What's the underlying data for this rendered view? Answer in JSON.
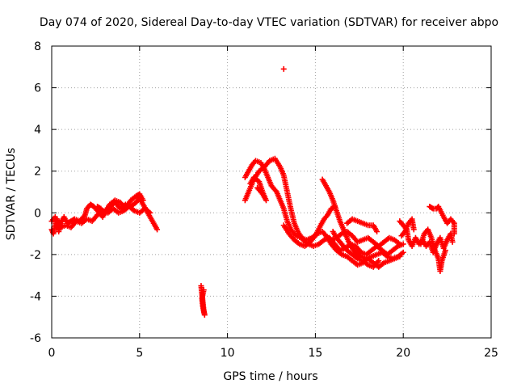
{
  "chart_data": {
    "type": "scatter",
    "title": "Day 074 of 2020, Sidereal Day-to-day VTEC variation (SDTVAR) for receiver abpo",
    "xlabel": "GPS time / hours",
    "ylabel": "SDTVAR / TECUs",
    "xlim": [
      0,
      25
    ],
    "ylim": [
      -6,
      8
    ],
    "xticks": [
      0,
      5,
      10,
      15,
      20,
      25
    ],
    "yticks": [
      -6,
      -4,
      -2,
      0,
      2,
      4,
      6,
      8
    ],
    "grid": true,
    "marker": "+",
    "color": "#ff0000",
    "series": [
      {
        "name": "SDTVAR",
        "tracks": [
          [
            [
              0.0,
              -0.8
            ],
            [
              0.1,
              -1.0
            ],
            [
              0.2,
              -0.6
            ],
            [
              0.3,
              -0.3
            ],
            [
              0.4,
              -0.9
            ],
            [
              0.5,
              -0.5
            ],
            [
              0.7,
              -0.2
            ],
            [
              0.9,
              -0.5
            ],
            [
              1.1,
              -0.4
            ],
            [
              1.3,
              -0.3
            ],
            [
              1.6,
              -0.4
            ],
            [
              1.9,
              -0.1
            ],
            [
              2.0,
              0.2
            ],
            [
              2.2,
              0.4
            ],
            [
              2.4,
              0.3
            ],
            [
              2.7,
              0.0
            ],
            [
              2.9,
              -0.2
            ],
            [
              3.1,
              0.1
            ],
            [
              3.3,
              0.3
            ],
            [
              3.6,
              0.5
            ],
            [
              3.9,
              0.2
            ],
            [
              4.2,
              0.4
            ],
            [
              4.5,
              0.3
            ],
            [
              4.8,
              0.5
            ],
            [
              5.0,
              0.7
            ],
            [
              5.2,
              0.4
            ],
            [
              5.4,
              0.1
            ],
            [
              5.6,
              -0.2
            ],
            [
              5.8,
              -0.5
            ],
            [
              6.0,
              -0.8
            ]
          ],
          [
            [
              0.0,
              -0.4
            ],
            [
              0.2,
              -0.2
            ],
            [
              0.5,
              -0.7
            ],
            [
              0.8,
              -0.6
            ],
            [
              1.1,
              -0.7
            ],
            [
              1.4,
              -0.4
            ],
            [
              1.7,
              -0.5
            ],
            [
              2.0,
              -0.3
            ],
            [
              2.3,
              -0.4
            ],
            [
              2.6,
              -0.1
            ],
            [
              2.9,
              0.1
            ],
            [
              3.2,
              0.0
            ],
            [
              3.5,
              0.2
            ],
            [
              3.8,
              0.0
            ],
            [
              4.1,
              0.1
            ],
            [
              4.4,
              0.3
            ],
            [
              4.7,
              0.1
            ],
            [
              5.0,
              0.0
            ],
            [
              5.3,
              0.2
            ],
            [
              5.6,
              0.0
            ]
          ],
          [
            [
              2.6,
              0.3
            ],
            [
              2.8,
              0.2
            ],
            [
              3.0,
              0.0
            ],
            [
              3.3,
              0.4
            ],
            [
              3.6,
              0.6
            ],
            [
              3.9,
              0.5
            ],
            [
              4.2,
              0.2
            ],
            [
              4.5,
              0.6
            ],
            [
              4.8,
              0.8
            ],
            [
              5.0,
              0.9
            ],
            [
              5.2,
              0.6
            ]
          ],
          [
            [
              8.5,
              -3.5
            ],
            [
              8.55,
              -3.9
            ],
            [
              8.6,
              -4.3
            ],
            [
              8.65,
              -4.7
            ],
            [
              8.7,
              -4.9
            ],
            [
              8.6,
              -4.5
            ],
            [
              8.55,
              -4.1
            ],
            [
              8.65,
              -3.7
            ]
          ],
          [
            [
              11.0,
              1.7
            ],
            [
              11.2,
              2.0
            ],
            [
              11.4,
              2.3
            ],
            [
              11.6,
              2.5
            ],
            [
              11.9,
              2.4
            ],
            [
              12.1,
              2.1
            ],
            [
              12.3,
              1.7
            ],
            [
              12.5,
              1.3
            ],
            [
              12.8,
              1.0
            ],
            [
              13.0,
              0.6
            ],
            [
              13.2,
              0.2
            ],
            [
              13.4,
              -0.4
            ],
            [
              13.6,
              -0.8
            ],
            [
              13.9,
              -1.1
            ],
            [
              14.2,
              -1.2
            ],
            [
              14.5,
              -1.3
            ],
            [
              14.8,
              -1.2
            ],
            [
              15.1,
              -1.0
            ],
            [
              15.4,
              -0.9
            ],
            [
              15.6,
              -1.1
            ],
            [
              15.9,
              -1.3
            ],
            [
              16.2,
              -1.2
            ],
            [
              16.5,
              -1.0
            ],
            [
              16.8,
              -0.9
            ],
            [
              17.1,
              -1.1
            ],
            [
              17.4,
              -1.4
            ],
            [
              17.7,
              -1.3
            ],
            [
              18.0,
              -1.2
            ],
            [
              18.3,
              -1.4
            ],
            [
              18.6,
              -1.6
            ],
            [
              18.9,
              -1.4
            ],
            [
              19.2,
              -1.2
            ],
            [
              19.5,
              -1.3
            ],
            [
              19.8,
              -1.5
            ]
          ],
          [
            [
              11.0,
              0.6
            ],
            [
              11.2,
              1.0
            ],
            [
              11.5,
              1.6
            ],
            [
              11.8,
              2.0
            ],
            [
              12.1,
              2.2
            ],
            [
              12.4,
              2.5
            ],
            [
              12.7,
              2.6
            ],
            [
              13.0,
              2.2
            ],
            [
              13.2,
              1.8
            ],
            [
              13.4,
              1.0
            ],
            [
              13.6,
              0.2
            ],
            [
              13.8,
              -0.5
            ],
            [
              14.0,
              -0.9
            ],
            [
              14.3,
              -1.3
            ],
            [
              14.6,
              -1.5
            ],
            [
              14.9,
              -1.6
            ],
            [
              15.2,
              -1.5
            ],
            [
              15.5,
              -1.3
            ],
            [
              15.8,
              -1.2
            ],
            [
              16.1,
              -1.5
            ],
            [
              16.4,
              -1.8
            ],
            [
              16.7,
              -1.7
            ],
            [
              17.0,
              -1.5
            ],
            [
              17.3,
              -1.6
            ],
            [
              17.6,
              -1.9
            ],
            [
              17.9,
              -2.0
            ],
            [
              18.2,
              -1.8
            ],
            [
              18.5,
              -1.6
            ],
            [
              18.8,
              -1.8
            ],
            [
              19.1,
              -2.0
            ],
            [
              19.4,
              -1.8
            ],
            [
              19.7,
              -1.6
            ],
            [
              20.0,
              -1.5
            ]
          ],
          [
            [
              11.3,
              1.4
            ],
            [
              11.5,
              1.7
            ],
            [
              11.8,
              1.5
            ],
            [
              12.0,
              1.0
            ],
            [
              12.2,
              0.6
            ],
            [
              12.0,
              0.9
            ],
            [
              11.7,
              1.2
            ]
          ],
          [
            [
              13.2,
              -0.6
            ],
            [
              13.5,
              -1.0
            ],
            [
              13.8,
              -1.3
            ],
            [
              14.1,
              -1.5
            ],
            [
              14.4,
              -1.6
            ],
            [
              14.7,
              -1.4
            ],
            [
              15.0,
              -1.1
            ],
            [
              15.3,
              -0.6
            ],
            [
              15.5,
              -0.3
            ],
            [
              15.7,
              -0.1
            ],
            [
              15.9,
              0.2
            ],
            [
              16.1,
              0.3
            ]
          ],
          [
            [
              15.4,
              1.6
            ],
            [
              15.6,
              1.3
            ],
            [
              15.8,
              1.0
            ],
            [
              16.0,
              0.6
            ],
            [
              16.2,
              0.1
            ],
            [
              16.4,
              -0.4
            ],
            [
              16.6,
              -0.8
            ],
            [
              16.8,
              -1.2
            ],
            [
              17.0,
              -1.6
            ],
            [
              17.3,
              -1.9
            ],
            [
              17.6,
              -2.1
            ],
            [
              17.9,
              -2.2
            ],
            [
              18.2,
              -2.1
            ],
            [
              18.5,
              -2.0
            ],
            [
              18.8,
              -1.9
            ],
            [
              19.1,
              -2.1
            ],
            [
              19.4,
              -2.2
            ],
            [
              19.7,
              -2.1
            ],
            [
              20.0,
              -1.9
            ]
          ],
          [
            [
              15.7,
              -1.2
            ],
            [
              15.9,
              -1.5
            ],
            [
              16.2,
              -1.8
            ],
            [
              16.5,
              -2.0
            ],
            [
              16.8,
              -2.1
            ],
            [
              17.1,
              -2.3
            ],
            [
              17.4,
              -2.5
            ],
            [
              17.7,
              -2.4
            ],
            [
              18.0,
              -2.2
            ],
            [
              18.3,
              -2.4
            ],
            [
              18.6,
              -2.6
            ],
            [
              18.9,
              -2.4
            ],
            [
              19.2,
              -2.3
            ],
            [
              19.5,
              -2.2
            ],
            [
              19.8,
              -2.1
            ]
          ],
          [
            [
              16.0,
              -0.9
            ],
            [
              16.2,
              -1.2
            ],
            [
              16.5,
              -1.5
            ],
            [
              16.8,
              -1.8
            ],
            [
              17.1,
              -2.0
            ],
            [
              17.4,
              -2.2
            ],
            [
              17.7,
              -2.3
            ],
            [
              18.0,
              -2.5
            ],
            [
              18.3,
              -2.6
            ],
            [
              18.6,
              -2.3
            ]
          ],
          [
            [
              16.8,
              -0.5
            ],
            [
              17.1,
              -0.3
            ],
            [
              17.4,
              -0.4
            ],
            [
              17.7,
              -0.5
            ],
            [
              18.0,
              -0.6
            ],
            [
              18.3,
              -0.6
            ],
            [
              18.5,
              -0.9
            ]
          ],
          [
            [
              19.8,
              -0.4
            ],
            [
              20.0,
              -0.6
            ],
            [
              20.2,
              -0.8
            ],
            [
              20.3,
              -1.3
            ],
            [
              20.5,
              -1.6
            ],
            [
              20.7,
              -1.2
            ],
            [
              20.9,
              -1.5
            ],
            [
              21.1,
              -1.3
            ],
            [
              21.3,
              -1.6
            ],
            [
              21.5,
              -1.4
            ],
            [
              21.7,
              -1.9
            ],
            [
              21.9,
              -1.5
            ],
            [
              22.1,
              -1.2
            ],
            [
              22.3,
              -1.7
            ],
            [
              22.5,
              -1.3
            ],
            [
              22.7,
              -1.0
            ],
            [
              22.8,
              -1.4
            ]
          ],
          [
            [
              19.9,
              -1.1
            ],
            [
              20.1,
              -0.9
            ],
            [
              20.3,
              -0.5
            ],
            [
              20.5,
              -0.3
            ],
            [
              20.6,
              -0.8
            ]
          ],
          [
            [
              21.0,
              -1.5
            ],
            [
              21.2,
              -1.0
            ],
            [
              21.4,
              -0.8
            ],
            [
              21.6,
              -1.2
            ],
            [
              21.8,
              -1.8
            ],
            [
              22.0,
              -2.2
            ],
            [
              22.1,
              -2.8
            ],
            [
              22.2,
              -2.3
            ],
            [
              22.4,
              -1.8
            ]
          ],
          [
            [
              21.5,
              0.3
            ],
            [
              21.7,
              0.2
            ],
            [
              21.9,
              0.2
            ],
            [
              22.0,
              0.3
            ],
            [
              22.3,
              -0.2
            ],
            [
              22.5,
              -0.5
            ],
            [
              22.7,
              -0.3
            ],
            [
              22.9,
              -0.5
            ],
            [
              22.9,
              -1.0
            ]
          ],
          [
            [
              13.2,
              6.9
            ]
          ]
        ]
      }
    ]
  }
}
